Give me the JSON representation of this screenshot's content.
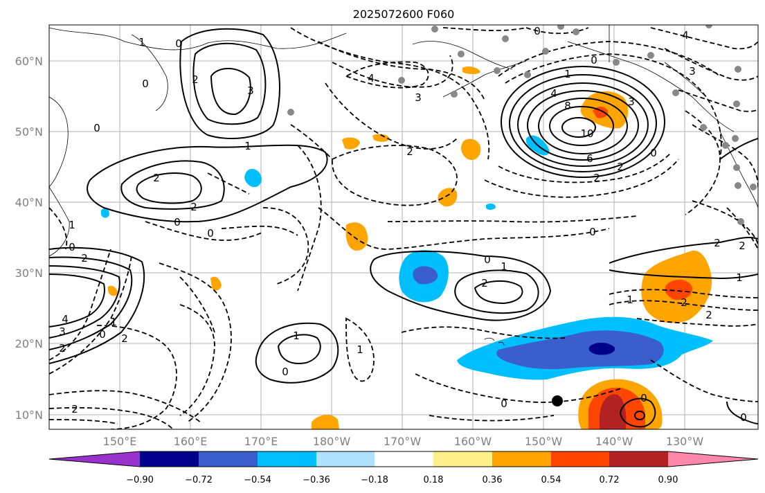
{
  "title": "2025072600 F060",
  "lon_labels": [
    "150°E",
    "160°E",
    "170°E",
    "180°W",
    "170°W",
    "160°W",
    "150°W",
    "140°W",
    "130°W"
  ],
  "lat_labels": [
    "10°N",
    "20°N",
    "30°N",
    "40°N",
    "50°N",
    "60°N"
  ],
  "colorbar": {
    "ticks": [
      "−0.90",
      "−0.72",
      "−0.54",
      "−0.36",
      "−0.18",
      "0.18",
      "0.36",
      "0.54",
      "0.72",
      "0.90"
    ],
    "colors": [
      "#9932cc",
      "#00008b",
      "#3a5fcd",
      "#00bfff",
      "#b0e2ff",
      "#ffffff",
      "#fff08a",
      "#ffa500",
      "#ff4500",
      "#b22222",
      "#ff88aa"
    ]
  },
  "contour_labels": [
    "0",
    "1",
    "2",
    "3",
    "4",
    "6",
    "8",
    "10"
  ],
  "palette": {
    "grid": "#b0b0b0",
    "label_gray": "#808080",
    "station_gray": "#888888"
  }
}
